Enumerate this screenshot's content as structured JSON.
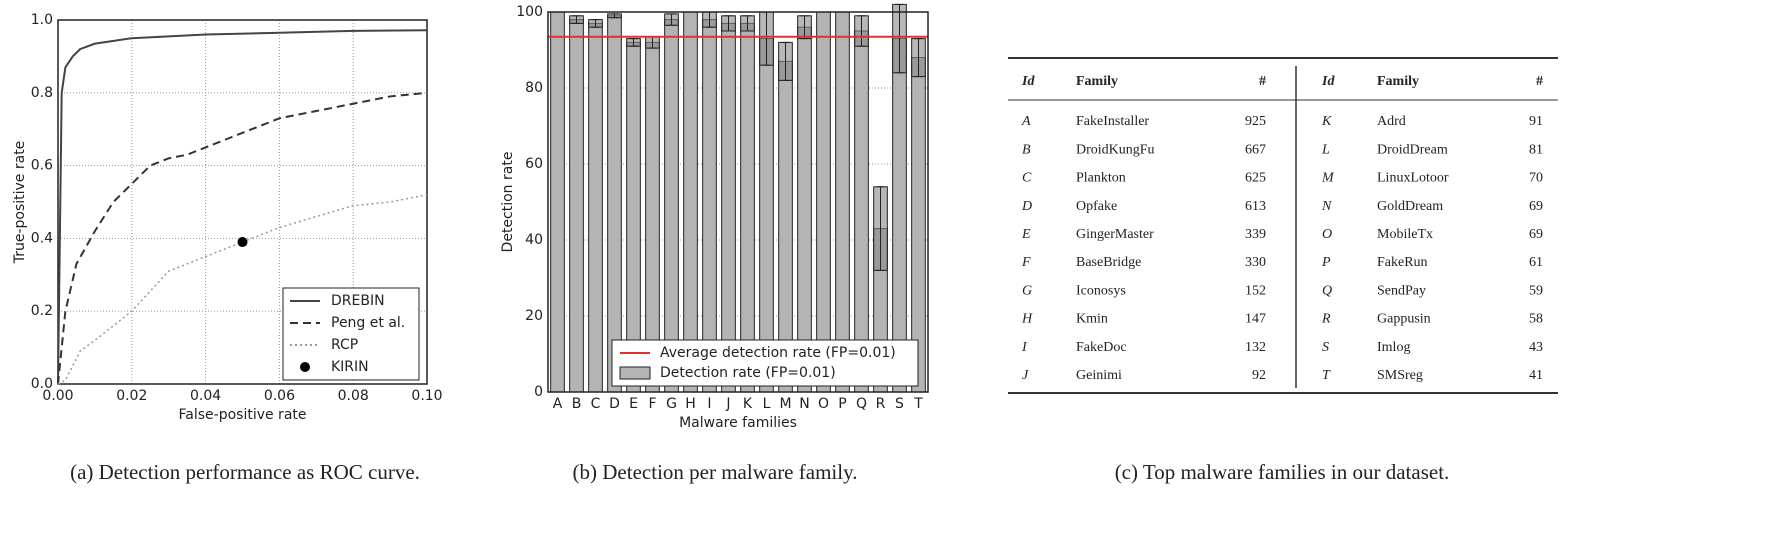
{
  "chart_data": [
    {
      "type": "line",
      "x_label": "False-positive rate",
      "y_label": "True-positive rate",
      "xlim": [
        0,
        0.1
      ],
      "ylim": [
        0,
        1
      ],
      "xticks": [
        {
          "value": 0,
          "label": "0.00"
        },
        {
          "value": 0.02,
          "label": "0.02"
        },
        {
          "value": 0.04,
          "label": "0.04"
        },
        {
          "value": 0.06,
          "label": "0.06"
        },
        {
          "value": 0.08,
          "label": "0.08"
        },
        {
          "value": 0.1,
          "label": "0.10"
        }
      ],
      "yticks": [
        {
          "value": 0,
          "label": "0.0"
        },
        {
          "value": 0.2,
          "label": "0.2"
        },
        {
          "value": 0.4,
          "label": "0.4"
        },
        {
          "value": 0.6,
          "label": "0.6"
        },
        {
          "value": 0.8,
          "label": "0.8"
        },
        {
          "value": 1,
          "label": "1.0"
        }
      ],
      "grid": true,
      "legend": "lower right",
      "series": [
        {
          "name": "DREBIN",
          "style": "solid",
          "color": "#444444",
          "x": [
            0,
            0.001,
            0.002,
            0.004,
            0.006,
            0.01,
            0.02,
            0.04,
            0.06,
            0.08,
            0.1
          ],
          "values": [
            0,
            0.8,
            0.87,
            0.9,
            0.92,
            0.935,
            0.95,
            0.96,
            0.965,
            0.97,
            0.972
          ]
        },
        {
          "name": "Peng et al.",
          "style": "dashed",
          "color": "#333333",
          "x": [
            0,
            0.002,
            0.005,
            0.01,
            0.015,
            0.02,
            0.025,
            0.03,
            0.035,
            0.04,
            0.05,
            0.06,
            0.07,
            0.08,
            0.09,
            0.1
          ],
          "values": [
            0,
            0.2,
            0.33,
            0.42,
            0.5,
            0.55,
            0.6,
            0.62,
            0.63,
            0.65,
            0.69,
            0.73,
            0.75,
            0.77,
            0.79,
            0.8
          ]
        },
        {
          "name": "RCP",
          "style": "dotted",
          "color": "#999999",
          "x": [
            0,
            0.002,
            0.004,
            0.006,
            0.01,
            0.02,
            0.03,
            0.04,
            0.05,
            0.06,
            0.07,
            0.08,
            0.09,
            0.1
          ],
          "values": [
            0,
            0.01,
            0.05,
            0.09,
            0.12,
            0.2,
            0.31,
            0.35,
            0.39,
            0.43,
            0.46,
            0.49,
            0.5,
            0.52
          ]
        },
        {
          "name": "KIRIN",
          "style": "marker",
          "color": "#000000",
          "x": [
            0.05
          ],
          "values": [
            0.39
          ]
        }
      ]
    },
    {
      "type": "bar",
      "x_label": "Malware families",
      "y_label": "Detection rate",
      "ylim": [
        0,
        100
      ],
      "yticks": [
        0,
        20,
        40,
        60,
        80,
        100
      ],
      "grid": true,
      "legend": "lower right",
      "categories": [
        "A",
        "B",
        "C",
        "D",
        "E",
        "F",
        "G",
        "H",
        "I",
        "J",
        "K",
        "L",
        "M",
        "N",
        "O",
        "P",
        "Q",
        "R",
        "S",
        "T"
      ],
      "reference_line": {
        "name": "Average detection rate (FP=0.01)",
        "value": 93.5,
        "color": "#e03030"
      },
      "series": [
        {
          "name": "Detection rate (FP=0.01)",
          "color": "#b4b4b4",
          "values": [
            100,
            98,
            97,
            99,
            92,
            92,
            98,
            100,
            98,
            97,
            97,
            93,
            87,
            96,
            100,
            100,
            95,
            43,
            93,
            88
          ],
          "errors": [
            0,
            1,
            1,
            0.5,
            1,
            1.5,
            1.5,
            0,
            2,
            2,
            2,
            7,
            5,
            3,
            0,
            0,
            4,
            11,
            9,
            5
          ]
        }
      ]
    }
  ],
  "table": {
    "headers": [
      "Id",
      "Family",
      "#",
      "Id",
      "Family",
      "#"
    ],
    "rows": [
      [
        "A",
        "FakeInstaller",
        925,
        "K",
        "Adrd",
        91
      ],
      [
        "B",
        "DroidKungFu",
        667,
        "L",
        "DroidDream",
        81
      ],
      [
        "C",
        "Plankton",
        625,
        "M",
        "LinuxLotoor",
        70
      ],
      [
        "D",
        "Opfake",
        613,
        "N",
        "GoldDream",
        69
      ],
      [
        "E",
        "GingerMaster",
        339,
        "O",
        "MobileTx",
        69
      ],
      [
        "F",
        "BaseBridge",
        330,
        "P",
        "FakeRun",
        61
      ],
      [
        "G",
        "Iconosys",
        152,
        "Q",
        "SendPay",
        59
      ],
      [
        "H",
        "Kmin",
        147,
        "R",
        "Gappusin",
        58
      ],
      [
        "I",
        "FakeDoc",
        132,
        "S",
        "Imlog",
        43
      ],
      [
        "J",
        "Geinimi",
        92,
        "T",
        "SMSreg",
        41
      ]
    ]
  },
  "captions": [
    "(a) Detection performance as ROC curve.",
    "(b) Detection per malware family.",
    "(c) Top malware families in our dataset."
  ]
}
